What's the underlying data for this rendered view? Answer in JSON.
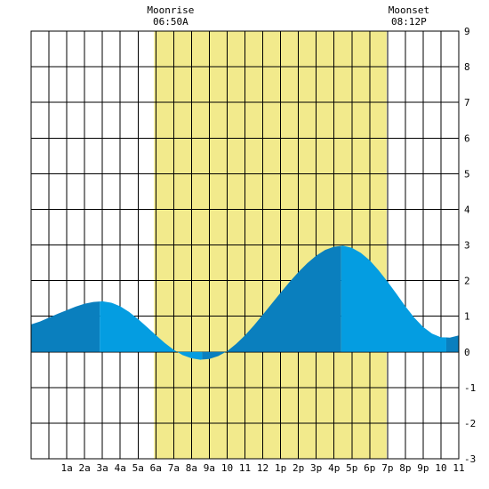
{
  "chart_data": {
    "type": "area",
    "title": "",
    "xlabel": "",
    "ylabel": "",
    "x_unit": "hour of day",
    "xlim": [
      -1,
      23
    ],
    "ylim": [
      -3,
      9
    ],
    "y_ticks": [
      -3,
      -2,
      -1,
      0,
      1,
      2,
      3,
      4,
      5,
      6,
      7,
      8,
      9
    ],
    "x_ticks": [
      {
        "x": 1,
        "label": "1a"
      },
      {
        "x": 2,
        "label": "2a"
      },
      {
        "x": 3,
        "label": "3a"
      },
      {
        "x": 4,
        "label": "4a"
      },
      {
        "x": 5,
        "label": "5a"
      },
      {
        "x": 6,
        "label": "6a"
      },
      {
        "x": 7,
        "label": "7a"
      },
      {
        "x": 8,
        "label": "8a"
      },
      {
        "x": 9,
        "label": "9a"
      },
      {
        "x": 10,
        "label": "10"
      },
      {
        "x": 11,
        "label": "11"
      },
      {
        "x": 12,
        "label": "12"
      },
      {
        "x": 13,
        "label": "1p"
      },
      {
        "x": 14,
        "label": "2p"
      },
      {
        "x": 15,
        "label": "3p"
      },
      {
        "x": 16,
        "label": "4p"
      },
      {
        "x": 17,
        "label": "5p"
      },
      {
        "x": 18,
        "label": "6p"
      },
      {
        "x": 19,
        "label": "7p"
      },
      {
        "x": 20,
        "label": "8p"
      },
      {
        "x": 21,
        "label": "9p"
      },
      {
        "x": 22,
        "label": "10"
      },
      {
        "x": 23,
        "label": "11"
      }
    ],
    "grid": true,
    "daylight": {
      "start": 5.9,
      "end": 18.95
    },
    "tide_extremes": [
      {
        "time": 2.85,
        "height": 1.42,
        "kind": "high"
      },
      {
        "time": 8.6,
        "height": -0.22,
        "kind": "low"
      },
      {
        "time": 16.4,
        "height": 2.98,
        "kind": "high"
      },
      {
        "time": 22.3,
        "height": 0.4,
        "kind": "low"
      }
    ],
    "series": [
      {
        "values": [
          {
            "x": -1,
            "y": 0.77
          },
          {
            "x": -0.5,
            "y": 0.85
          },
          {
            "x": 0,
            "y": 0.96
          },
          {
            "x": 0.5,
            "y": 1.07
          },
          {
            "x": 1,
            "y": 1.17
          },
          {
            "x": 1.5,
            "y": 1.27
          },
          {
            "x": 2,
            "y": 1.35
          },
          {
            "x": 2.5,
            "y": 1.4
          },
          {
            "x": 3,
            "y": 1.42
          },
          {
            "x": 3.5,
            "y": 1.38
          },
          {
            "x": 4,
            "y": 1.28
          },
          {
            "x": 4.5,
            "y": 1.12
          },
          {
            "x": 5,
            "y": 0.92
          },
          {
            "x": 5.5,
            "y": 0.7
          },
          {
            "x": 6,
            "y": 0.47
          },
          {
            "x": 6.5,
            "y": 0.25
          },
          {
            "x": 7,
            "y": 0.06
          },
          {
            "x": 7.5,
            "y": -0.09
          },
          {
            "x": 8,
            "y": -0.18
          },
          {
            "x": 8.5,
            "y": -0.22
          },
          {
            "x": 9,
            "y": -0.2
          },
          {
            "x": 9.5,
            "y": -0.12
          },
          {
            "x": 10,
            "y": 0.02
          },
          {
            "x": 10.5,
            "y": 0.22
          },
          {
            "x": 11,
            "y": 0.46
          },
          {
            "x": 11.5,
            "y": 0.74
          },
          {
            "x": 12,
            "y": 1.04
          },
          {
            "x": 12.5,
            "y": 1.35
          },
          {
            "x": 13,
            "y": 1.66
          },
          {
            "x": 13.5,
            "y": 1.96
          },
          {
            "x": 14,
            "y": 2.24
          },
          {
            "x": 14.5,
            "y": 2.49
          },
          {
            "x": 15,
            "y": 2.7
          },
          {
            "x": 15.5,
            "y": 2.86
          },
          {
            "x": 16,
            "y": 2.95
          },
          {
            "x": 16.5,
            "y": 2.98
          },
          {
            "x": 17,
            "y": 2.92
          },
          {
            "x": 17.5,
            "y": 2.78
          },
          {
            "x": 18,
            "y": 2.57
          },
          {
            "x": 18.5,
            "y": 2.29
          },
          {
            "x": 19,
            "y": 1.97
          },
          {
            "x": 19.5,
            "y": 1.63
          },
          {
            "x": 20,
            "y": 1.28
          },
          {
            "x": 20.5,
            "y": 0.96
          },
          {
            "x": 21,
            "y": 0.7
          },
          {
            "x": 21.5,
            "y": 0.51
          },
          {
            "x": 22,
            "y": 0.41
          },
          {
            "x": 22.5,
            "y": 0.4
          },
          {
            "x": 23,
            "y": 0.46
          },
          {
            "x": 23.3,
            "y": 0.55
          }
        ]
      }
    ]
  },
  "moonrise": {
    "label": "Moonrise",
    "time": "06:50A",
    "x": 6.83
  },
  "moonset": {
    "label": "Moonset",
    "time": "08:12P",
    "x": 20.2
  },
  "colors": {
    "background": "#ffffff",
    "daylight": "#f2ea8c",
    "grid": "#000000",
    "tide_rising": "#0a7fbe",
    "tide_falling": "#049de1"
  }
}
